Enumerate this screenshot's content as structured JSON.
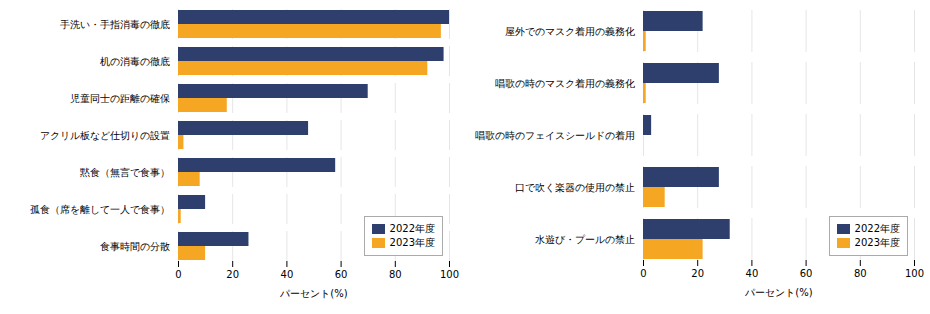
{
  "chart_data": [
    {
      "type": "bar",
      "orientation": "horizontal",
      "categories": [
        "手洗い・手指消毒の徹底",
        "机の消毒の徹底",
        "児童同士の距離の確保",
        "アクリル板など仕切りの設置",
        "黙食（無言で食事）",
        "孤食（席を離して一人で食事）",
        "食事時間の分散"
      ],
      "series": [
        {
          "name": "2022年度",
          "color": "#2e3f6e",
          "values": [
            100,
            98,
            70,
            48,
            58,
            10,
            26
          ]
        },
        {
          "name": "2023年度",
          "color": "#f5a623",
          "values": [
            97,
            92,
            18,
            2,
            8,
            1,
            10
          ]
        }
      ],
      "xlabel": "パーセント(%)",
      "xlim": [
        0,
        100
      ],
      "xticks": [
        0,
        20,
        40,
        60,
        80,
        100
      ],
      "grid": true,
      "legend": "lower right"
    },
    {
      "type": "bar",
      "orientation": "horizontal",
      "categories": [
        "屋外でのマスク着用の義務化",
        "唱歌の時のマスク着用の義務化",
        "唱歌の時のフェイスシールドの着用",
        "口で吹く楽器の使用の禁止",
        "水遊び・プールの禁止"
      ],
      "series": [
        {
          "name": "2022年度",
          "color": "#2e3f6e",
          "values": [
            22,
            28,
            3,
            28,
            32
          ]
        },
        {
          "name": "2023年度",
          "color": "#f5a623",
          "values": [
            1,
            1,
            0,
            8,
            22
          ]
        }
      ],
      "xlabel": "パーセント(%)",
      "xlim": [
        0,
        100
      ],
      "xticks": [
        0,
        20,
        40,
        60,
        80,
        100
      ],
      "grid": true,
      "legend": "lower right"
    }
  ]
}
